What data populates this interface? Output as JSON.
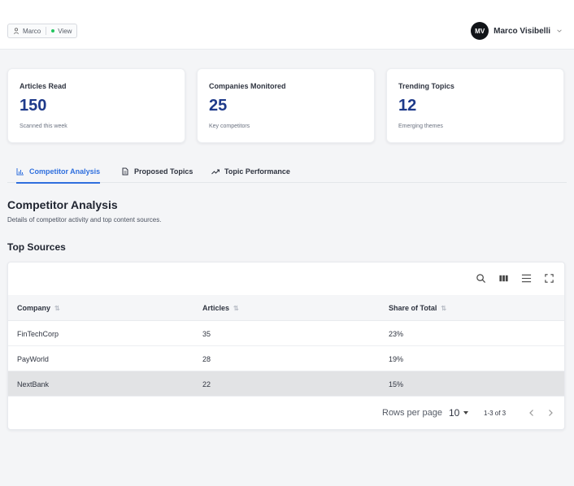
{
  "topbar": {
    "chip_user": "Marco",
    "chip_mode": "View",
    "avatar_initials": "MV",
    "user_name": "Marco Visibelli"
  },
  "stats": [
    {
      "label": "Articles Read",
      "value": "150",
      "sub": "Scanned this week"
    },
    {
      "label": "Companies Monitored",
      "value": "25",
      "sub": "Key competitors"
    },
    {
      "label": "Trending Topics",
      "value": "12",
      "sub": "Emerging themes"
    }
  ],
  "tabs": [
    {
      "label": "Competitor Analysis",
      "icon": "bar-chart-icon",
      "active": true
    },
    {
      "label": "Proposed Topics",
      "icon": "document-icon",
      "active": false
    },
    {
      "label": "Topic Performance",
      "icon": "trend-icon",
      "active": false
    }
  ],
  "section": {
    "title": "Competitor Analysis",
    "description": "Details of competitor activity and top content sources.",
    "table_title": "Top Sources"
  },
  "table": {
    "columns": [
      "Company",
      "Articles",
      "Share of Total"
    ],
    "rows": [
      [
        "FinTechCorp",
        "35",
        "23%"
      ],
      [
        "PayWorld",
        "28",
        "19%"
      ],
      [
        "NextBank",
        "22",
        "15%"
      ]
    ],
    "selected_row": 2
  },
  "pagination": {
    "rows_per_page_label": "Rows per page",
    "rows_per_page": "10",
    "range": "1-3 of 3"
  },
  "colors": {
    "accent": "#2f6fde",
    "stat_value": "#1e3a8a",
    "status_dot": "#22c55e"
  }
}
